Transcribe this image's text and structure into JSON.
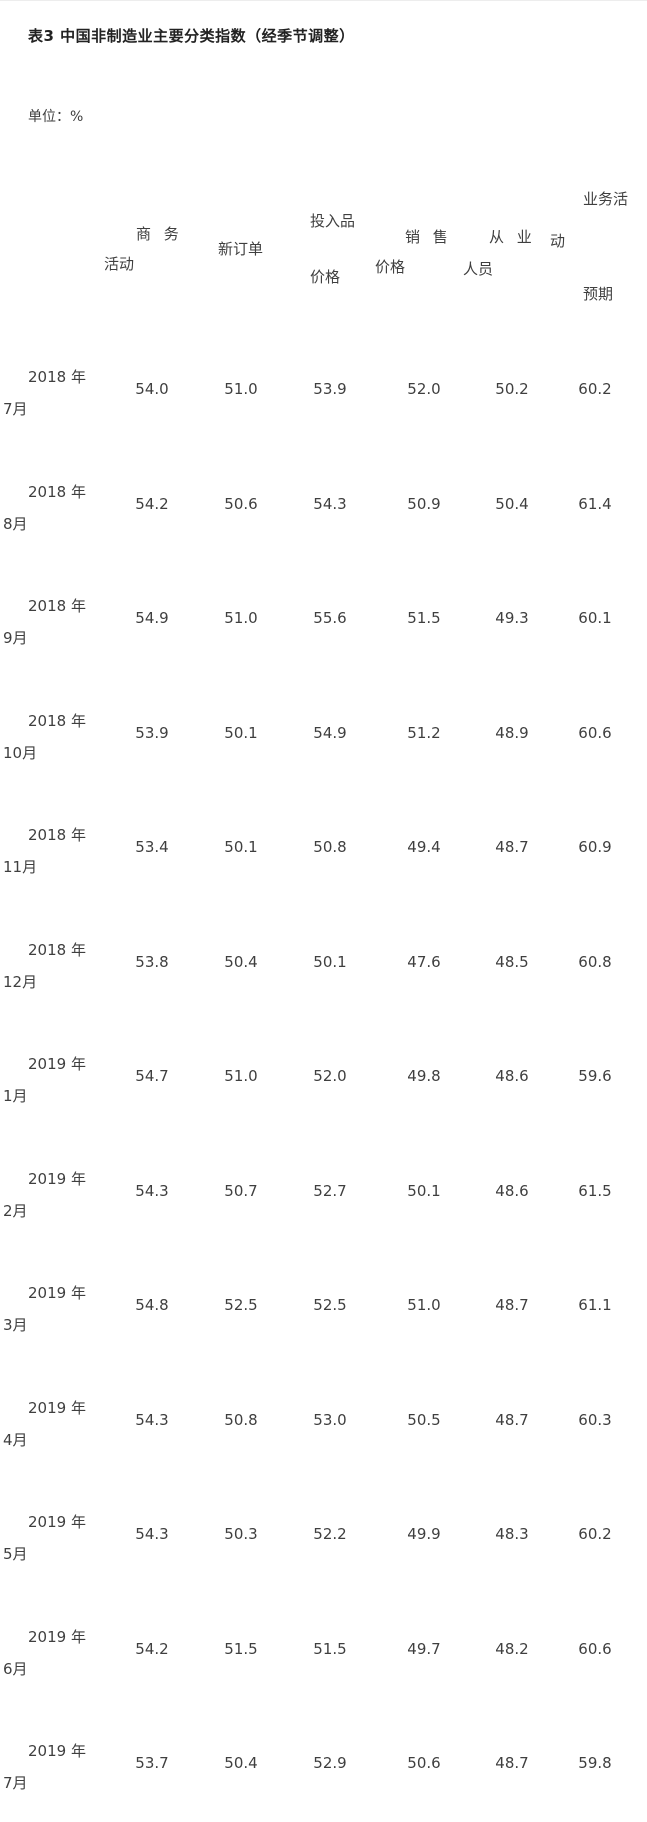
{
  "title": "表3 中国非制造业主要分类指数（经季节调整）",
  "unit_label": "单位：%",
  "table": {
    "columns": [
      "商务活动",
      "新订单",
      "投入品价格",
      "销售价格",
      "从业人员",
      "业务活动预期"
    ],
    "header_fragments": [
      "商 务",
      "活动",
      "新订单",
      "投入品",
      "价格",
      "销 售",
      "价格",
      "从 业",
      "人员",
      "动",
      "业务活",
      "预期"
    ],
    "rows": [
      {
        "period": "2018年7月",
        "period_line1": "2018 年",
        "period_line2": "7月",
        "values": [
          "54.0",
          "51.0",
          "53.9",
          "52.0",
          "50.2",
          "60.2"
        ]
      },
      {
        "period": "2018年8月",
        "period_line1": "2018 年",
        "period_line2": "8月",
        "values": [
          "54.2",
          "50.6",
          "54.3",
          "50.9",
          "50.4",
          "61.4"
        ]
      },
      {
        "period": "2018年9月",
        "period_line1": "2018 年",
        "period_line2": "9月",
        "values": [
          "54.9",
          "51.0",
          "55.6",
          "51.5",
          "49.3",
          "60.1"
        ]
      },
      {
        "period": "2018年10月",
        "period_line1": "2018 年",
        "period_line2": "10月",
        "values": [
          "53.9",
          "50.1",
          "54.9",
          "51.2",
          "48.9",
          "60.6"
        ]
      },
      {
        "period": "2018年11月",
        "period_line1": "2018 年",
        "period_line2": "11月",
        "values": [
          "53.4",
          "50.1",
          "50.8",
          "49.4",
          "48.7",
          "60.9"
        ]
      },
      {
        "period": "2018年12月",
        "period_line1": "2018 年",
        "period_line2": "12月",
        "values": [
          "53.8",
          "50.4",
          "50.1",
          "47.6",
          "48.5",
          "60.8"
        ]
      },
      {
        "period": "2019年1月",
        "period_line1": "2019 年",
        "period_line2": "1月",
        "values": [
          "54.7",
          "51.0",
          "52.0",
          "49.8",
          "48.6",
          "59.6"
        ]
      },
      {
        "period": "2019年2月",
        "period_line1": "2019 年",
        "period_line2": "2月",
        "values": [
          "54.3",
          "50.7",
          "52.7",
          "50.1",
          "48.6",
          "61.5"
        ]
      },
      {
        "period": "2019年3月",
        "period_line1": "2019 年",
        "period_line2": "3月",
        "values": [
          "54.8",
          "52.5",
          "52.5",
          "51.0",
          "48.7",
          "61.1"
        ]
      },
      {
        "period": "2019年4月",
        "period_line1": "2019 年",
        "period_line2": "4月",
        "values": [
          "54.3",
          "50.8",
          "53.0",
          "50.5",
          "48.7",
          "60.3"
        ]
      },
      {
        "period": "2019年5月",
        "period_line1": "2019 年",
        "period_line2": "5月",
        "values": [
          "54.3",
          "50.3",
          "52.2",
          "49.9",
          "48.3",
          "60.2"
        ]
      },
      {
        "period": "2019年6月",
        "period_line1": "2019 年",
        "period_line2": "6月",
        "values": [
          "54.2",
          "51.5",
          "51.5",
          "49.7",
          "48.2",
          "60.6"
        ]
      },
      {
        "period": "2019年7月",
        "period_line1": "2019 年",
        "period_line2": "7月",
        "values": [
          "53.7",
          "50.4",
          "52.9",
          "50.6",
          "48.7",
          "59.8"
        ]
      }
    ]
  }
}
